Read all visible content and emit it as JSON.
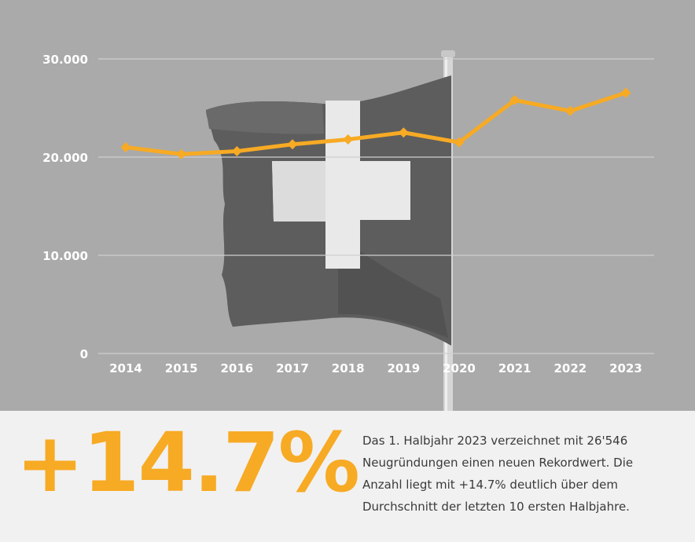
{
  "chart_data": {
    "type": "line",
    "title": "",
    "xlabel": "",
    "ylabel": "",
    "categories": [
      "2014",
      "2015",
      "2016",
      "2017",
      "2018",
      "2019",
      "2020",
      "2021",
      "2022",
      "2023"
    ],
    "series": [
      {
        "values": [
          21000,
          20300,
          20600,
          21300,
          21800,
          22500,
          21500,
          25800,
          24700,
          26546
        ]
      }
    ],
    "ylim": [
      0,
      30000
    ],
    "y_ticks": [
      0,
      10000,
      20000,
      30000
    ],
    "y_tick_labels": [
      "0",
      "10.000",
      "20.000",
      "30.000"
    ],
    "grid": true,
    "legend": "none",
    "background": "grayscale photo of the Swiss flag on a flagpole"
  },
  "highlight": {
    "big_stat": "+14.7%",
    "description": "Das 1. Halbjahr 2023 verzeichnet mit 26'546 Neugründungen einen neuen Rekordwert. Die Anzahl liegt mit +14.7% deutlich über dem Durchschnitt der letzten 10 ersten Halbjahre."
  },
  "colors": {
    "accent": "#f7aa24",
    "chart_background": "#a9a9a9",
    "gridline": "#cfcfcf",
    "axis_text": "#ffffff",
    "panel_background": "#f1f1f1",
    "body_text": "#3a3a3a"
  }
}
